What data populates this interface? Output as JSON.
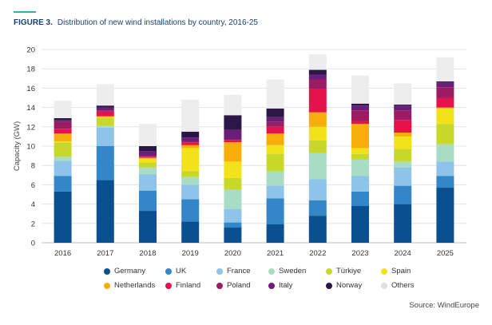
{
  "figure": {
    "label": "FIGURE 3.",
    "title": "Distribution of new wind installations by country, 2016-25",
    "source": "Source: WindEurope"
  },
  "chart_data": {
    "type": "bar",
    "stacked": true,
    "title": "Distribution of new wind installations by country, 2016-25",
    "xlabel": "",
    "ylabel": "Capacity (GW)",
    "ylim": [
      0,
      20
    ],
    "yticks": [
      0,
      2,
      4,
      6,
      8,
      10,
      12,
      14,
      16,
      18,
      20
    ],
    "grid": true,
    "legend_position": "bottom",
    "categories": [
      "2016",
      "2017",
      "2018",
      "2019",
      "2020",
      "2021",
      "2022",
      "2023",
      "2024",
      "2025"
    ],
    "series": [
      {
        "name": "Germany",
        "color": "#0a4f8f",
        "values": [
          5.3,
          6.5,
          3.3,
          2.2,
          1.6,
          1.9,
          2.8,
          3.8,
          4.0,
          5.7
        ]
      },
      {
        "name": "UK",
        "color": "#3386c7",
        "values": [
          1.6,
          3.5,
          2.1,
          2.3,
          0.5,
          2.7,
          1.6,
          1.5,
          1.9,
          1.2
        ]
      },
      {
        "name": "France",
        "color": "#8ec3ea",
        "values": [
          1.6,
          1.9,
          1.7,
          1.5,
          1.4,
          1.3,
          2.2,
          1.6,
          1.9,
          1.5
        ]
      },
      {
        "name": "Sweden",
        "color": "#a9dcc5",
        "values": [
          0.4,
          0.2,
          0.7,
          0.8,
          2.0,
          1.5,
          2.7,
          1.7,
          0.6,
          1.8
        ]
      },
      {
        "name": "Türkiye",
        "color": "#c7d82a",
        "values": [
          1.5,
          0.8,
          0.5,
          0.6,
          1.2,
          1.8,
          1.3,
          0.6,
          1.3,
          2.1
        ]
      },
      {
        "name": "Spain",
        "color": "#f2e21b",
        "values": [
          0.1,
          0.1,
          0.4,
          2.4,
          1.7,
          0.9,
          1.4,
          0.6,
          1.3,
          1.6
        ]
      },
      {
        "name": "Netherlands",
        "color": "#f7ad0a",
        "values": [
          0.8,
          0.1,
          0.1,
          0.3,
          2.0,
          1.2,
          1.5,
          2.5,
          0.4,
          0.1
        ]
      },
      {
        "name": "Finland",
        "color": "#e5134c",
        "values": [
          0.5,
          0.5,
          0.1,
          0.3,
          0.2,
          0.7,
          2.4,
          0.3,
          1.3,
          1.0
        ]
      },
      {
        "name": "Poland",
        "color": "#9c1c63",
        "values": [
          0.7,
          0.1,
          0.1,
          0.1,
          0.1,
          0.5,
          1.0,
          1.1,
          1.0,
          1.1
        ]
      },
      {
        "name": "Italy",
        "color": "#6a1e78",
        "values": [
          0.2,
          0.3,
          0.5,
          0.4,
          1.0,
          0.5,
          0.5,
          0.5,
          0.5,
          0.5
        ]
      },
      {
        "name": "Norway",
        "color": "#2c1645",
        "values": [
          0.2,
          0.2,
          0.5,
          0.6,
          1.5,
          0.9,
          0.5,
          0.2,
          0.1,
          0.1
        ]
      },
      {
        "name": "Others",
        "color": "#ededed",
        "values": [
          1.8,
          2.2,
          2.3,
          3.3,
          2.1,
          3.0,
          1.6,
          2.9,
          2.2,
          2.5
        ]
      }
    ]
  }
}
